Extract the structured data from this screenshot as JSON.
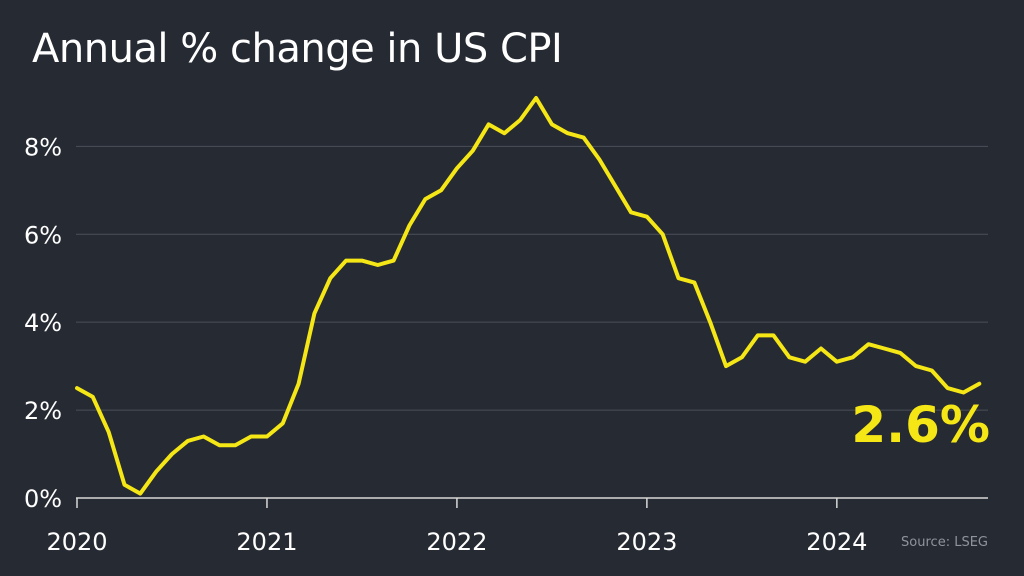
{
  "title": "Annual % change in US CPI",
  "source": "Source: LSEG",
  "callout": "2.6%",
  "colors": {
    "background": "#262a33",
    "line": "#f5e616",
    "grid": "#4a4f59",
    "text": "#ffffff",
    "source": "#8f949c"
  },
  "chart_data": {
    "type": "line",
    "title": "Annual % change in US CPI",
    "x_tick_labels": [
      "2020",
      "2021",
      "2022",
      "2023",
      "2024"
    ],
    "y_tick_labels": [
      "0%",
      "2%",
      "4%",
      "6%",
      "8%"
    ],
    "y_ticks": [
      0,
      2,
      4,
      6,
      8
    ],
    "ylim": [
      0,
      9.1
    ],
    "xlim": [
      "2020-01",
      "2024-10"
    ],
    "grid": true,
    "series": [
      {
        "x": [
          "2020-01",
          "2020-02",
          "2020-03",
          "2020-04",
          "2020-05",
          "2020-06",
          "2020-07",
          "2020-08",
          "2020-09",
          "2020-10",
          "2020-11",
          "2020-12",
          "2021-01",
          "2021-02",
          "2021-03",
          "2021-04",
          "2021-05",
          "2021-06",
          "2021-07",
          "2021-08",
          "2021-09",
          "2021-10",
          "2021-11",
          "2021-12",
          "2022-01",
          "2022-02",
          "2022-03",
          "2022-04",
          "2022-05",
          "2022-06",
          "2022-07",
          "2022-08",
          "2022-09",
          "2022-10",
          "2022-11",
          "2022-12",
          "2023-01",
          "2023-02",
          "2023-03",
          "2023-04",
          "2023-05",
          "2023-06",
          "2023-07",
          "2023-08",
          "2023-09",
          "2023-10",
          "2023-11",
          "2023-12",
          "2024-01",
          "2024-02",
          "2024-03",
          "2024-04",
          "2024-05",
          "2024-06",
          "2024-07",
          "2024-08",
          "2024-09",
          "2024-10"
        ],
        "values": [
          2.5,
          2.3,
          1.5,
          0.3,
          0.1,
          0.6,
          1.0,
          1.3,
          1.4,
          1.2,
          1.2,
          1.4,
          1.4,
          1.7,
          2.6,
          4.2,
          5.0,
          5.4,
          5.4,
          5.3,
          5.4,
          6.2,
          6.8,
          7.0,
          7.5,
          7.9,
          8.5,
          8.3,
          8.6,
          9.1,
          8.5,
          8.3,
          8.2,
          7.7,
          7.1,
          6.5,
          6.4,
          6.0,
          5.0,
          4.9,
          4.0,
          3.0,
          3.2,
          3.7,
          3.7,
          3.2,
          3.1,
          3.4,
          3.1,
          3.2,
          3.5,
          3.4,
          3.3,
          3.0,
          2.9,
          2.5,
          2.4,
          2.6
        ]
      }
    ]
  }
}
